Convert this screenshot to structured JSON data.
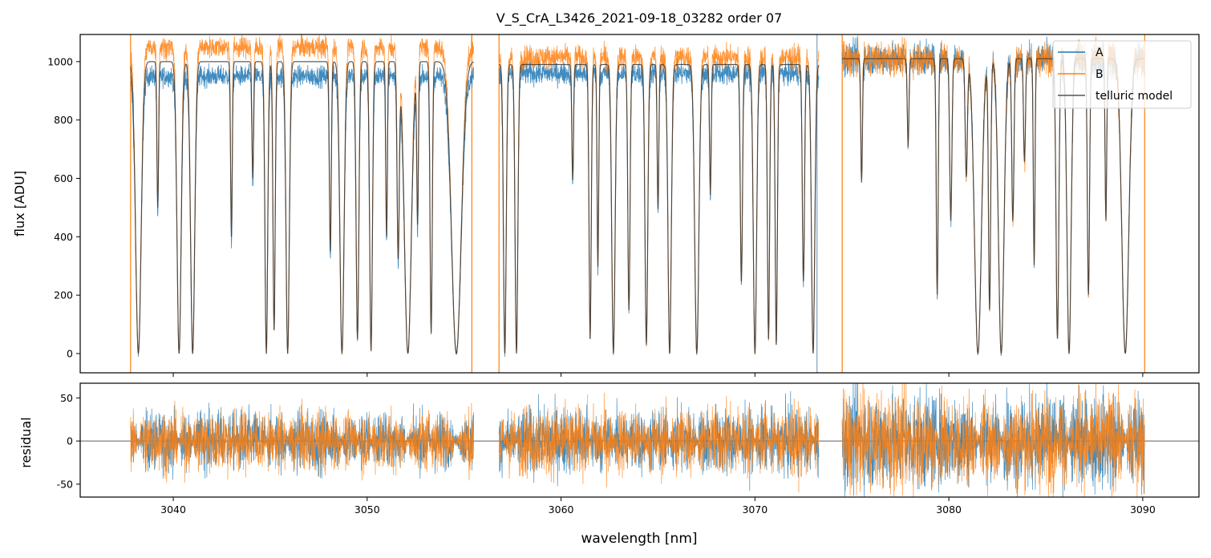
{
  "chart_data": [
    {
      "type": "line",
      "title": "V_S_CrA_L3426_2021-09-18_03282  order 07",
      "ylabel": "flux [ADU]",
      "xlim": [
        3035.2,
        3092.9
      ],
      "ylim": [
        -66,
        1093
      ],
      "yticks": [
        0,
        200,
        400,
        600,
        800,
        1000
      ],
      "xticks": [
        3040,
        3050,
        3060,
        3070,
        3080,
        3090
      ],
      "legend": {
        "placement": "top-right",
        "entries": [
          "A",
          "B",
          "telluric model"
        ]
      },
      "colors": {
        "A": "#1f77b4",
        "B": "#ff7f0e",
        "telluric model": "#555555"
      },
      "series": [
        {
          "name": "A",
          "continuum": [
            950,
            960,
            1010
          ]
        },
        {
          "name": "B",
          "continuum": [
            1050,
            1015,
            1010
          ]
        },
        {
          "name": "telluric model",
          "continuum": [
            1000,
            990,
            1010
          ]
        }
      ],
      "segments": [
        [
          3037.8,
          3055.5
        ],
        [
          3056.8,
          3073.3
        ],
        [
          3074.5,
          3090.1
        ]
      ],
      "vertical_lines": [
        {
          "x": 3037.8,
          "color": "#ff7f0e"
        },
        {
          "x": 3055.4,
          "color": "#ff7f0e"
        },
        {
          "x": 3056.8,
          "color": "#ff7f0e"
        },
        {
          "x": 3073.2,
          "color": "#7f9fbf"
        },
        {
          "x": 3074.5,
          "color": "#ff7f0e"
        },
        {
          "x": 3090.1,
          "color": "#ff7f0e"
        }
      ],
      "absorption_lines": [
        [
          3038.2,
          1.0,
          0.2
        ],
        [
          3039.2,
          0.5,
          0.06
        ],
        [
          3040.3,
          1.0,
          0.15
        ],
        [
          3041.0,
          1.0,
          0.15
        ],
        [
          3043.0,
          0.6,
          0.06
        ],
        [
          3044.1,
          0.4,
          0.06
        ],
        [
          3044.8,
          1.0,
          0.1
        ],
        [
          3045.2,
          0.92,
          0.08
        ],
        [
          3045.9,
          1.0,
          0.12
        ],
        [
          3048.1,
          0.65,
          0.07
        ],
        [
          3048.7,
          1.0,
          0.15
        ],
        [
          3049.5,
          0.95,
          0.1
        ],
        [
          3050.2,
          0.99,
          0.1
        ],
        [
          3051.0,
          0.6,
          0.06
        ],
        [
          3051.6,
          0.67,
          0.08
        ],
        [
          3052.1,
          1.0,
          0.25
        ],
        [
          3052.6,
          0.55,
          0.06
        ],
        [
          3053.3,
          0.93,
          0.08
        ],
        [
          3054.6,
          1.0,
          0.35
        ],
        [
          3057.1,
          1.0,
          0.1
        ],
        [
          3057.7,
          1.0,
          0.1
        ],
        [
          3060.6,
          0.4,
          0.06
        ],
        [
          3061.5,
          0.95,
          0.08
        ],
        [
          3061.9,
          0.7,
          0.06
        ],
        [
          3062.7,
          1.0,
          0.12
        ],
        [
          3063.5,
          0.85,
          0.08
        ],
        [
          3064.4,
          0.97,
          0.1
        ],
        [
          3065.0,
          0.5,
          0.06
        ],
        [
          3065.6,
          1.0,
          0.12
        ],
        [
          3067.0,
          1.0,
          0.15
        ],
        [
          3067.7,
          0.45,
          0.06
        ],
        [
          3069.3,
          0.75,
          0.08
        ],
        [
          3070.0,
          1.0,
          0.12
        ],
        [
          3070.7,
          0.95,
          0.08
        ],
        [
          3071.1,
          0.97,
          0.08
        ],
        [
          3072.5,
          0.75,
          0.08
        ],
        [
          3073.0,
          1.0,
          0.12
        ],
        [
          3075.5,
          0.42,
          0.06
        ],
        [
          3077.9,
          0.3,
          0.06
        ],
        [
          3079.4,
          0.8,
          0.07
        ],
        [
          3080.1,
          0.55,
          0.08
        ],
        [
          3080.9,
          0.4,
          0.08
        ],
        [
          3081.5,
          1.0,
          0.25
        ],
        [
          3082.1,
          0.85,
          0.08
        ],
        [
          3082.7,
          1.0,
          0.2
        ],
        [
          3083.3,
          0.55,
          0.08
        ],
        [
          3083.9,
          0.35,
          0.07
        ],
        [
          3084.4,
          0.7,
          0.06
        ],
        [
          3085.6,
          0.95,
          0.1
        ],
        [
          3086.2,
          1.0,
          0.15
        ],
        [
          3087.2,
          0.8,
          0.08
        ],
        [
          3088.1,
          0.55,
          0.06
        ],
        [
          3089.1,
          1.0,
          0.25
        ]
      ]
    },
    {
      "type": "line",
      "xlabel": "wavelength [nm]",
      "ylabel": "residual",
      "xlim": [
        3035.2,
        3092.9
      ],
      "ylim": [
        -65,
        67
      ],
      "yticks": [
        -50,
        0,
        50
      ],
      "xticks": [
        3040,
        3050,
        3060,
        3070,
        3080,
        3090
      ],
      "series": [
        {
          "name": "A",
          "noise_amplitude": [
            18,
            20,
            28
          ]
        },
        {
          "name": "B",
          "noise_amplitude": [
            18,
            20,
            28
          ]
        }
      ]
    }
  ]
}
